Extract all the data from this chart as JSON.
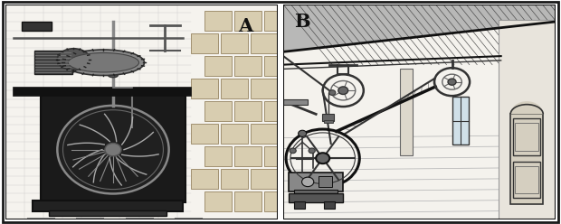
{
  "figsize": [
    6.2,
    2.48
  ],
  "dpi": 100,
  "bg_color": "#ffffff",
  "border_color": "#1a1a1a",
  "label_A": "A",
  "label_B": "B",
  "label_fontsize": 15,
  "label_fontweight": "bold",
  "dark": "#111111",
  "dgray": "#333333",
  "mgray": "#666666",
  "lgray": "#aaaaaa",
  "vlgray": "#dddddd",
  "white": "#ffffff",
  "panel_A_bg": "#e8e5dc",
  "panel_B_bg": "#f2f0eb"
}
